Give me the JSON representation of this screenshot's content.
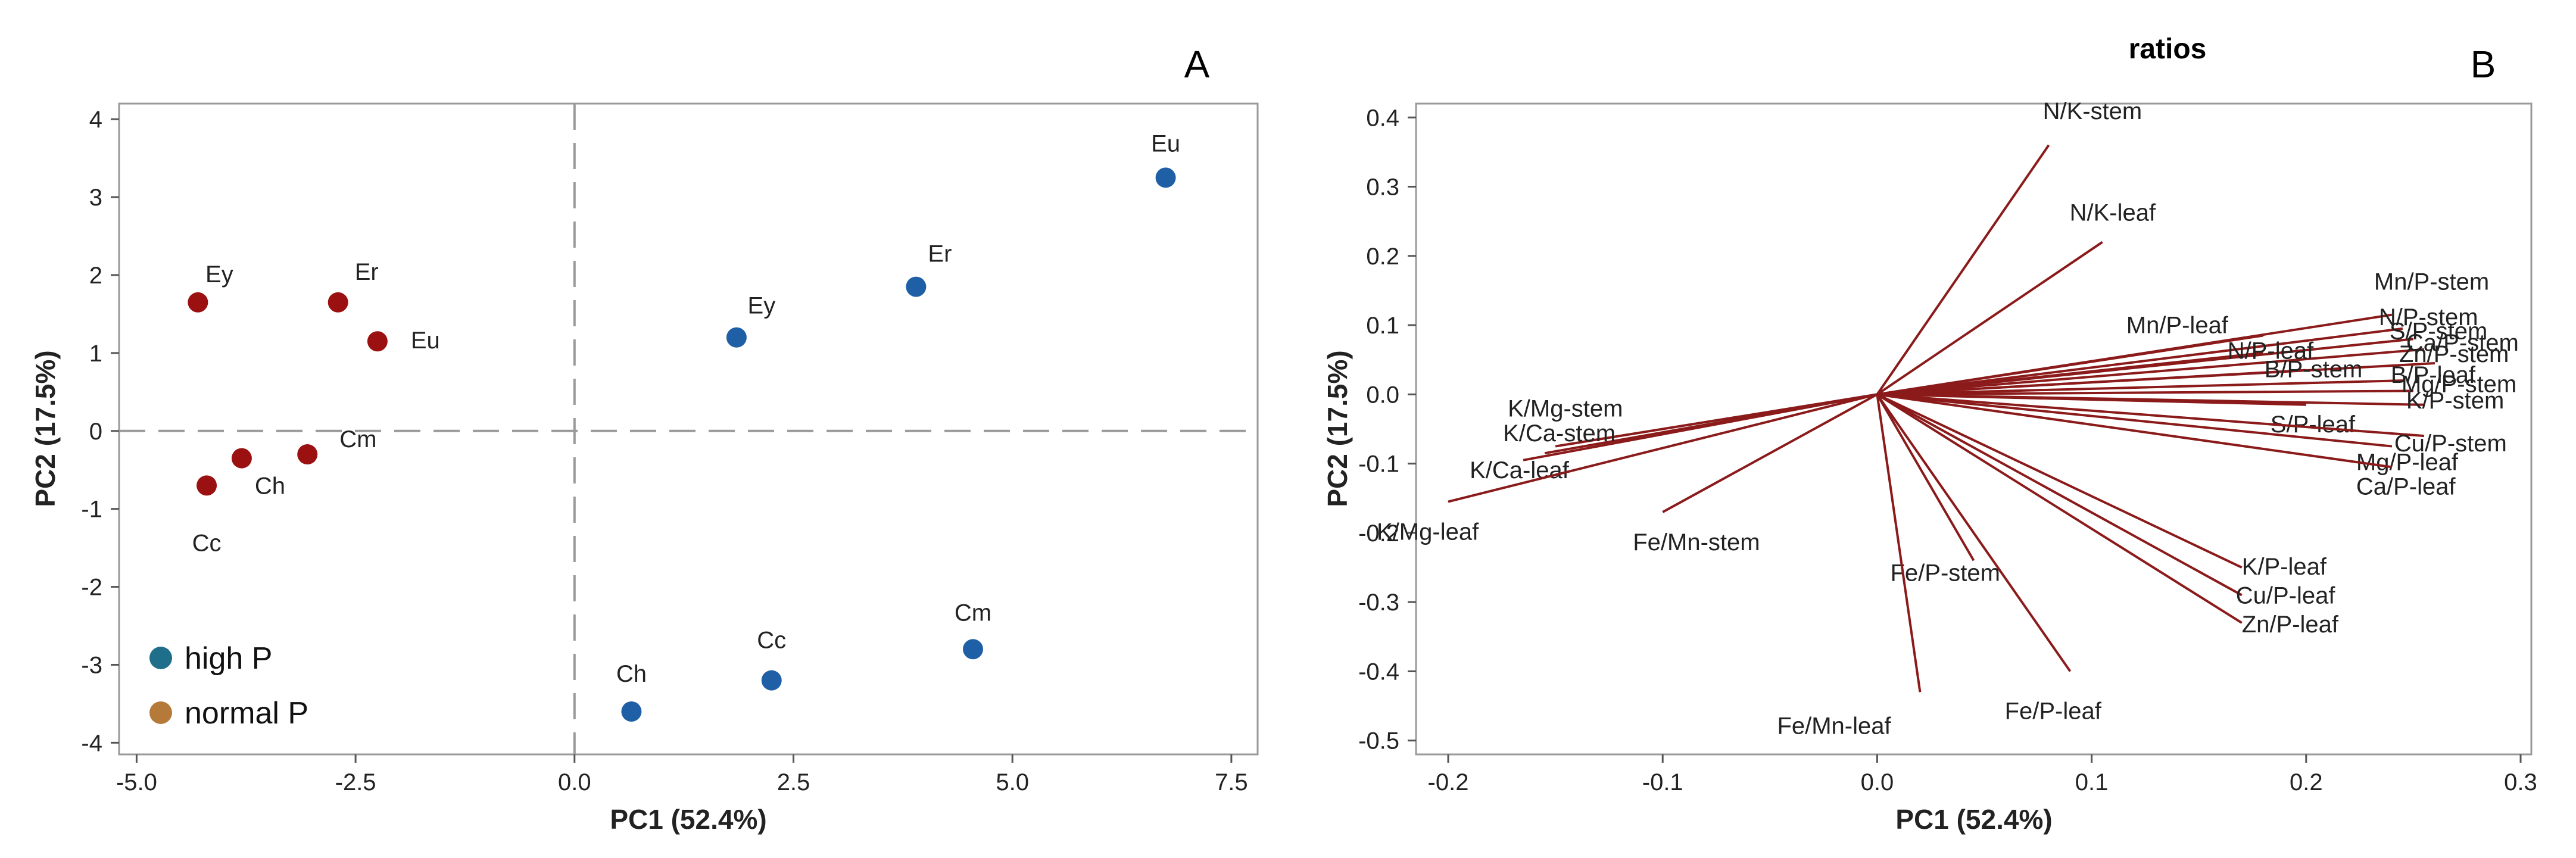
{
  "chart_data": [
    {
      "type": "scatter",
      "panel": "A",
      "title": "",
      "xlabel": "PC1 (52.4%)",
      "ylabel": "PC2 (17.5%)",
      "xlim": [
        -5.2,
        7.8
      ],
      "ylim": [
        -4.15,
        4.2
      ],
      "xticks": [
        -5.0,
        -2.5,
        0.0,
        2.5,
        5.0,
        7.5
      ],
      "xtick_labels": [
        "-5.0",
        "-2.5",
        "0.0",
        "2.5",
        "5.0",
        "7.5"
      ],
      "yticks": [
        4,
        3,
        2,
        1,
        0,
        -1,
        -2,
        -3,
        -4
      ],
      "ytick_labels": [
        "4",
        "3",
        "2",
        "1",
        "0",
        "-1",
        "-2",
        "-3",
        "-4"
      ],
      "reference_lines": {
        "x": 0,
        "y": 0,
        "style": "dashed"
      },
      "legend": [
        {
          "label": "high P",
          "color": "#1f6f8b"
        },
        {
          "label": "normal P",
          "color": "#b5793a"
        }
      ],
      "series": [
        {
          "name": "normal P",
          "color": "#9b1111",
          "points": [
            {
              "label": "Ey",
              "x": -4.3,
              "y": 1.65
            },
            {
              "label": "Er",
              "x": -2.7,
              "y": 1.65
            },
            {
              "label": "Eu",
              "x": -2.25,
              "y": 1.15
            },
            {
              "label": "Ch",
              "x": -3.8,
              "y": -0.35
            },
            {
              "label": "Cm",
              "x": -3.05,
              "y": -0.3
            },
            {
              "label": "Cc",
              "x": -4.2,
              "y": -0.7
            }
          ]
        },
        {
          "name": "high P",
          "color": "#1f5fa6",
          "points": [
            {
              "label": "Eu",
              "x": 6.75,
              "y": 3.25
            },
            {
              "label": "Er",
              "x": 3.9,
              "y": 1.85
            },
            {
              "label": "Ey",
              "x": 1.85,
              "y": 1.2
            },
            {
              "label": "Ch",
              "x": 0.65,
              "y": -3.6
            },
            {
              "label": "Cc",
              "x": 2.25,
              "y": -3.2
            },
            {
              "label": "Cm",
              "x": 4.55,
              "y": -2.8
            }
          ]
        }
      ]
    },
    {
      "type": "biplot",
      "panel": "B",
      "title": "ratios",
      "xlabel": "PC1 (52.4%)",
      "ylabel": "PC2 (17.5%)",
      "xlim": [
        -0.215,
        0.305
      ],
      "ylim": [
        -0.52,
        0.42
      ],
      "xticks": [
        -0.2,
        -0.1,
        0.0,
        0.1,
        0.2,
        0.3
      ],
      "xtick_labels": [
        "-0.2",
        "-0.1",
        "0.0",
        "0.1",
        "0.2",
        "0.3"
      ],
      "yticks": [
        0.4,
        0.3,
        0.2,
        0.1,
        0.0,
        -0.1,
        -0.2,
        -0.3,
        -0.4,
        -0.5
      ],
      "ytick_labels": [
        "0.4",
        "0.3",
        "0.2",
        "0.1",
        "0.0",
        "-0.1",
        "-0.2",
        "-0.3",
        "-0.4",
        "-0.5"
      ],
      "line_color": "#8b1a1a",
      "loadings": [
        {
          "label": "N/K-stem",
          "x": 0.08,
          "y": 0.36
        },
        {
          "label": "N/K-leaf",
          "x": 0.105,
          "y": 0.22
        },
        {
          "label": "Mn/P-stem",
          "x": 0.24,
          "y": 0.115
        },
        {
          "label": "N/P-stem",
          "x": 0.245,
          "y": 0.095
        },
        {
          "label": "Mn/P-leaf",
          "x": 0.18,
          "y": 0.085
        },
        {
          "label": "S/P-stem",
          "x": 0.25,
          "y": 0.08
        },
        {
          "label": "Ca/P-stem",
          "x": 0.255,
          "y": 0.065
        },
        {
          "label": "N/P-leaf",
          "x": 0.18,
          "y": 0.06
        },
        {
          "label": "Zn/P-stem",
          "x": 0.26,
          "y": 0.045
        },
        {
          "label": "B/P-stem",
          "x": 0.2,
          "y": 0.035
        },
        {
          "label": "B/P-leaf",
          "x": 0.245,
          "y": 0.02
        },
        {
          "label": "Mg/P-stem",
          "x": 0.25,
          "y": 0.005
        },
        {
          "label": "K/P-stem",
          "x": 0.255,
          "y": -0.015
        },
        {
          "label": "S/P-leaf",
          "x": 0.2,
          "y": -0.015
        },
        {
          "label": "Cu/P-stem",
          "x": 0.255,
          "y": -0.06
        },
        {
          "label": "Mg/P-leaf",
          "x": 0.24,
          "y": -0.075
        },
        {
          "label": "Ca/P-leaf",
          "x": 0.24,
          "y": -0.105
        },
        {
          "label": "K/P-leaf",
          "x": 0.17,
          "y": -0.25
        },
        {
          "label": "Cu/P-leaf",
          "x": 0.17,
          "y": -0.29
        },
        {
          "label": "Zn/P-leaf",
          "x": 0.17,
          "y": -0.33
        },
        {
          "label": "Fe/P-stem",
          "x": 0.045,
          "y": -0.24
        },
        {
          "label": "Fe/P-leaf",
          "x": 0.09,
          "y": -0.4
        },
        {
          "label": "Fe/Mn-leaf",
          "x": 0.02,
          "y": -0.43
        },
        {
          "label": "Fe/Mn-stem",
          "x": -0.1,
          "y": -0.17
        },
        {
          "label": "K/Mg-stem",
          "x": -0.15,
          "y": -0.075
        },
        {
          "label": "K/Ca-stem",
          "x": -0.155,
          "y": -0.085
        },
        {
          "label": "K/Ca-leaf",
          "x": -0.165,
          "y": -0.095
        },
        {
          "label": "K/Mg-leaf",
          "x": -0.2,
          "y": -0.155
        }
      ]
    }
  ],
  "panelA": {
    "letter": "A"
  },
  "panelB": {
    "letter": "B",
    "title": "ratios"
  }
}
